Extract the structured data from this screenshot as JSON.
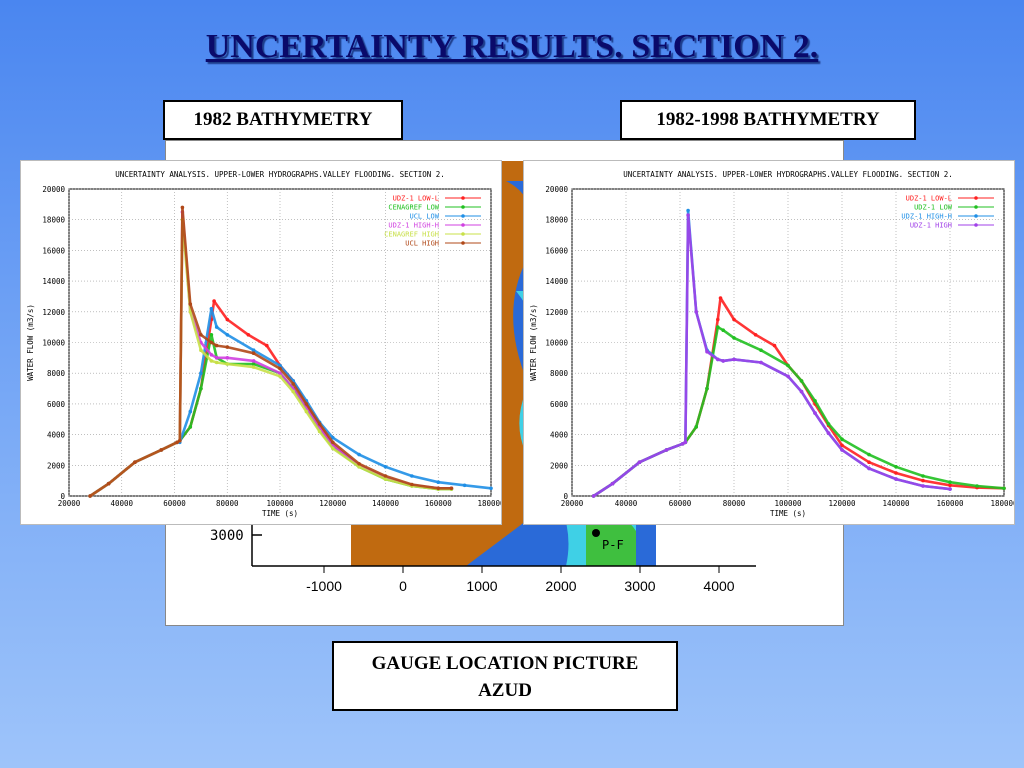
{
  "slide": {
    "title": "UNCERTAINTY RESULTS. SECTION 2.",
    "label_1982": "1982 BATHYMETRY",
    "label_1982_1998": "1982-1998 BATHYMETRY",
    "gauge_line1": "GAUGE LOCATION PICTURE",
    "gauge_line2": "AZUD"
  },
  "map": {
    "x_ticks": [
      "-1000",
      "0",
      "1000",
      "2000",
      "3000",
      "4000"
    ],
    "y_tick": "3000",
    "point_label": "P-F",
    "colors": {
      "land": "#c06a10",
      "water": "#2a6ad8",
      "shallow": "#3fd0e6",
      "veg": "#3fbf3f",
      "sand": "#e6c848"
    }
  },
  "chart_data": [
    {
      "type": "line",
      "title": "UNCERTAINTY ANALYSIS. UPPER-LOWER HYDROGRAPHS.VALLEY FLOODING. SECTION 2.",
      "xlabel": "TIME (s)",
      "ylabel": "WATER FLOW (m3/s)",
      "xlim": [
        20000,
        180000
      ],
      "ylim": [
        0,
        20000
      ],
      "xticks": [
        20000,
        40000,
        60000,
        80000,
        100000,
        120000,
        140000,
        160000,
        180000
      ],
      "yticks": [
        0,
        2000,
        4000,
        6000,
        8000,
        10000,
        12000,
        14000,
        16000,
        18000,
        20000
      ],
      "grid": true,
      "legend": "top-right",
      "series": [
        {
          "name": "UDZ-1 LOW-L",
          "color": "#ff2020",
          "x": [
            28000,
            35000,
            45000,
            55000,
            61000,
            62000,
            66000,
            70000,
            74000,
            75000,
            80000,
            88000,
            95000,
            100000,
            105000,
            110000,
            115000,
            120000,
            130000,
            140000,
            150000,
            160000,
            165000
          ],
          "y": [
            0,
            800,
            2200,
            3000,
            3500,
            3600,
            4500,
            7000,
            11500,
            12700,
            11500,
            10500,
            9800,
            8500,
            7500,
            6000,
            4600,
            3300,
            2000,
            1200,
            700,
            500,
            500
          ]
        },
        {
          "name": "CENAGREF LOW",
          "color": "#20c020",
          "x": [
            28000,
            35000,
            45000,
            55000,
            61000,
            62000,
            66000,
            70000,
            74000,
            76000,
            80000,
            90000,
            100000,
            105000,
            110000,
            115000,
            120000,
            130000,
            140000,
            150000,
            160000,
            165000
          ],
          "y": [
            0,
            800,
            2200,
            3000,
            3500,
            3600,
            4500,
            7000,
            10500,
            9000,
            8600,
            8600,
            8000,
            7000,
            5700,
            4300,
            3200,
            1900,
            1100,
            650,
            450,
            450
          ]
        },
        {
          "name": "UCL LOW",
          "color": "#1f8fe6",
          "x": [
            28000,
            35000,
            45000,
            55000,
            61000,
            62000,
            66000,
            70000,
            74000,
            76000,
            80000,
            90000,
            100000,
            105000,
            110000,
            115000,
            120000,
            130000,
            140000,
            150000,
            160000,
            170000,
            180000
          ],
          "y": [
            0,
            800,
            2200,
            3000,
            3500,
            3500,
            5500,
            8000,
            12200,
            11000,
            10500,
            9500,
            8500,
            7500,
            6200,
            4800,
            3800,
            2700,
            1900,
            1300,
            900,
            700,
            500
          ]
        },
        {
          "name": "UDZ-1 HIGH-H",
          "color": "#d040e0",
          "x": [
            28000,
            35000,
            45000,
            55000,
            61000,
            62000,
            63000,
            66000,
            70000,
            74000,
            76000,
            80000,
            90000,
            100000,
            105000,
            110000,
            115000,
            120000,
            130000,
            140000,
            150000,
            160000,
            165000
          ],
          "y": [
            0,
            800,
            2200,
            3000,
            3500,
            3600,
            18500,
            12000,
            10000,
            9200,
            9000,
            9000,
            8800,
            8000,
            7000,
            5700,
            4400,
            3300,
            2000,
            1200,
            700,
            500,
            500
          ]
        },
        {
          "name": "CENAGREF HIGH",
          "color": "#c8e048",
          "x": [
            28000,
            35000,
            45000,
            55000,
            61000,
            62000,
            63000,
            66000,
            70000,
            74000,
            76000,
            80000,
            90000,
            100000,
            105000,
            110000,
            115000,
            120000,
            130000,
            140000,
            150000,
            160000,
            165000
          ],
          "y": [
            0,
            800,
            2200,
            3000,
            3500,
            3600,
            18000,
            12000,
            9500,
            8800,
            8700,
            8600,
            8400,
            7800,
            6800,
            5500,
            4200,
            3100,
            1900,
            1100,
            650,
            450,
            450
          ]
        },
        {
          "name": "UCL HIGH",
          "color": "#b04818",
          "x": [
            28000,
            35000,
            45000,
            55000,
            61000,
            62000,
            63000,
            66000,
            70000,
            74000,
            76000,
            80000,
            90000,
            100000,
            105000,
            110000,
            115000,
            120000,
            130000,
            140000,
            150000,
            160000,
            165000
          ],
          "y": [
            0,
            800,
            2200,
            3000,
            3500,
            3600,
            18800,
            12500,
            10500,
            10000,
            9800,
            9700,
            9300,
            8300,
            7300,
            6000,
            4700,
            3500,
            2100,
            1300,
            750,
            500,
            500
          ]
        }
      ]
    },
    {
      "type": "line",
      "title": "UNCERTAINTY ANALYSIS. UPPER-LOWER HYDROGRAPHS.VALLEY FLOODING. SECTION 2.",
      "xlabel": "TIME (s)",
      "ylabel": "WATER FLOW (m3/s)",
      "xlim": [
        20000,
        180000
      ],
      "ylim": [
        0,
        20000
      ],
      "xticks": [
        20000,
        40000,
        60000,
        80000,
        100000,
        120000,
        140000,
        160000,
        180000
      ],
      "yticks": [
        0,
        2000,
        4000,
        6000,
        8000,
        10000,
        12000,
        14000,
        16000,
        18000,
        20000
      ],
      "grid": true,
      "legend": "top-right",
      "series": [
        {
          "name": "UDZ-1 LOW-L",
          "color": "#ff2020",
          "x": [
            28000,
            35000,
            45000,
            55000,
            61000,
            62000,
            66000,
            70000,
            74000,
            75000,
            80000,
            88000,
            95000,
            100000,
            105000,
            110000,
            115000,
            120000,
            130000,
            140000,
            150000,
            160000,
            170000,
            180000
          ],
          "y": [
            0,
            800,
            2200,
            3000,
            3400,
            3500,
            4500,
            7000,
            11500,
            12900,
            11500,
            10500,
            9800,
            8500,
            7500,
            6000,
            4600,
            3300,
            2200,
            1500,
            1000,
            700,
            550,
            500
          ]
        },
        {
          "name": "UDZ-1 LOW",
          "color": "#20c020",
          "x": [
            28000,
            35000,
            45000,
            55000,
            61000,
            62000,
            66000,
            70000,
            74000,
            76000,
            80000,
            90000,
            100000,
            105000,
            110000,
            115000,
            120000,
            130000,
            140000,
            150000,
            160000,
            170000,
            180000
          ],
          "y": [
            0,
            800,
            2200,
            3000,
            3400,
            3500,
            4500,
            7000,
            11000,
            10800,
            10300,
            9500,
            8500,
            7500,
            6200,
            4700,
            3700,
            2700,
            1900,
            1300,
            900,
            650,
            500
          ]
        },
        {
          "name": "UDZ-1 HIGH-H",
          "color": "#1f8fe6",
          "x": [
            28000,
            35000,
            45000,
            55000,
            61000,
            62000,
            63000,
            66000,
            70000,
            74000,
            76000,
            80000,
            90000,
            100000,
            105000,
            110000,
            115000,
            120000,
            130000,
            140000,
            150000,
            160000
          ],
          "y": [
            0,
            800,
            2200,
            3000,
            3400,
            3500,
            18600,
            12000,
            9500,
            8900,
            8800,
            8900,
            8700,
            7800,
            6800,
            5400,
            4100,
            3000,
            1800,
            1100,
            650,
            450
          ]
        },
        {
          "name": "UDZ-1 HIGH",
          "color": "#a040e8",
          "x": [
            28000,
            35000,
            45000,
            55000,
            61000,
            62000,
            63000,
            66000,
            70000,
            74000,
            76000,
            80000,
            90000,
            100000,
            105000,
            110000,
            115000,
            120000,
            130000,
            140000,
            150000,
            160000
          ],
          "y": [
            0,
            800,
            2200,
            3000,
            3400,
            3500,
            18300,
            12000,
            9400,
            8900,
            8800,
            8900,
            8700,
            7800,
            6800,
            5400,
            4100,
            3000,
            1800,
            1100,
            650,
            450
          ]
        }
      ]
    }
  ]
}
